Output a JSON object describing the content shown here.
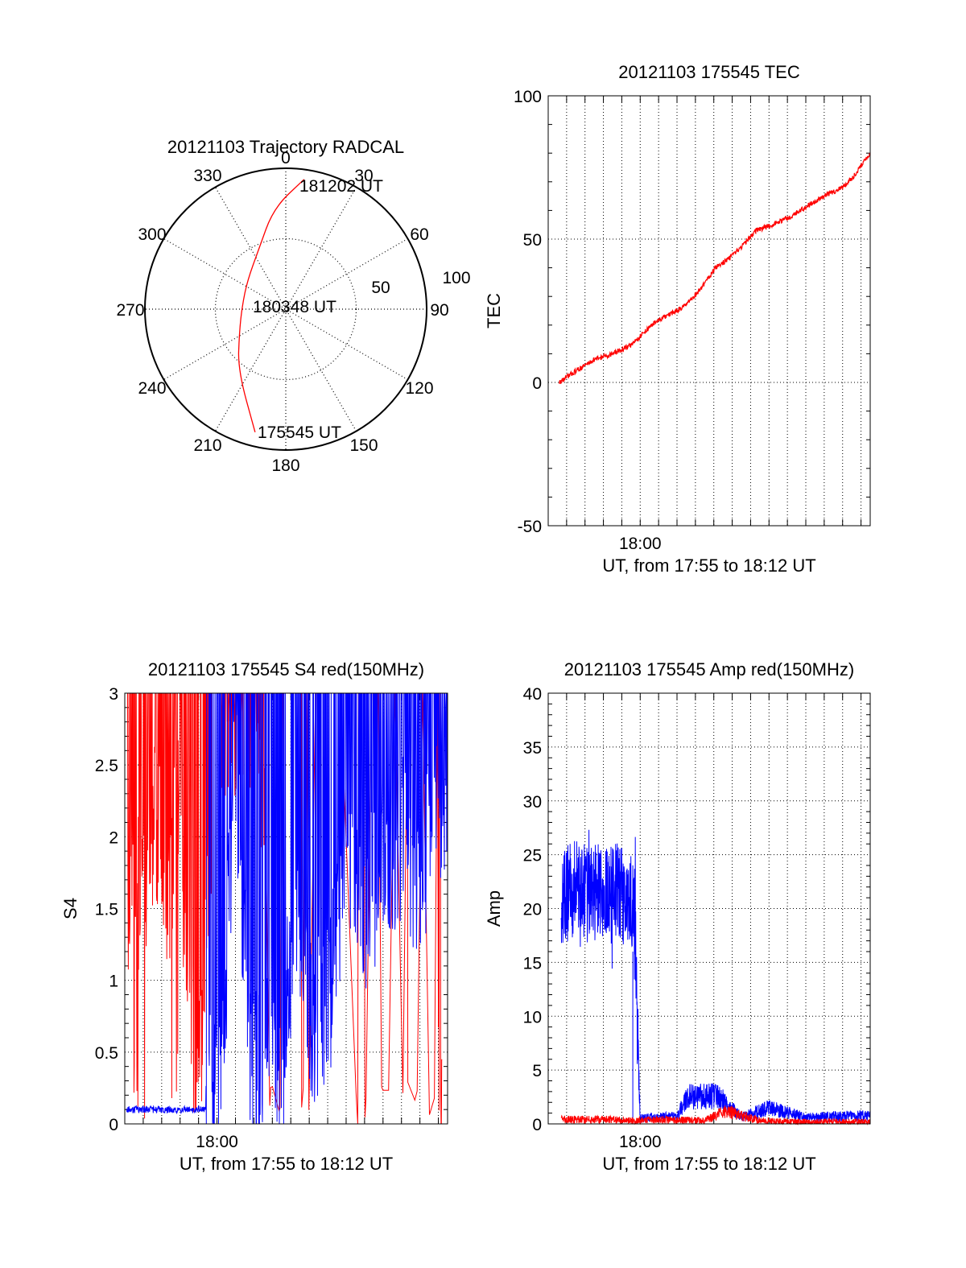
{
  "colors": {
    "red": "#ff0000",
    "blue": "#0000ff",
    "axis": "#000000",
    "grid": "#000000",
    "background": "#ffffff"
  },
  "chart_data": [
    {
      "id": "polar",
      "type": "polar-trajectory",
      "title": "20121103 Trajectory RADCAL",
      "azimuth_labels": [
        "0",
        "30",
        "60",
        "90",
        "120",
        "150",
        "180",
        "210",
        "240",
        "270",
        "300",
        "330"
      ],
      "radial_labels": [
        "50",
        "100"
      ],
      "rings": [
        50,
        100
      ],
      "rmax": 100,
      "annotations": [
        {
          "text": "181202 UT",
          "az": 8,
          "r": 93
        },
        {
          "text": "180348 UT",
          "az": 0,
          "r": 0
        },
        {
          "text": "175545 UT",
          "az": 169,
          "r": 90
        }
      ],
      "track": [
        [
          8,
          93
        ],
        [
          353,
          72
        ],
        [
          335,
          46
        ],
        [
          307,
          34
        ],
        [
          275,
          31
        ],
        [
          243,
          37
        ],
        [
          218,
          55
        ],
        [
          194,
          90
        ]
      ],
      "grid": true
    },
    {
      "id": "tec",
      "type": "line",
      "title": "20121103 175545 TEC",
      "ylabel": "TEC",
      "xlabel": "UT, from 17:55 to 18:12 UT",
      "x_tick_labels": [
        {
          "min": 360,
          "label": "18:00"
        }
      ],
      "xlim_min": [
        355,
        372.5
      ],
      "ylim": [
        -50,
        100
      ],
      "y_ticks": [
        -50,
        0,
        50,
        100
      ],
      "grid": true,
      "series": [
        {
          "color": "red",
          "x": [
            355.6,
            356.5,
            357.5,
            358.5,
            359.5,
            360.3,
            360.8,
            361.7,
            362.5,
            363.2,
            364.1,
            365,
            365.6,
            366.3,
            367.2,
            368.2,
            369.2,
            370,
            371,
            371.6,
            372.5
          ],
          "y": [
            0,
            4,
            8,
            10,
            13,
            18,
            21,
            24,
            27,
            32,
            40,
            44,
            48,
            53,
            55,
            58,
            62,
            65,
            68,
            72,
            80
          ]
        }
      ]
    },
    {
      "id": "s4",
      "type": "line",
      "title": "20121103 175545 S4 red(150MHz)",
      "ylabel": "S4",
      "xlabel": "UT, from 17:55 to 18:12 UT",
      "x_tick_labels": [
        {
          "min": 360,
          "label": "18:00"
        }
      ],
      "xlim_min": [
        355,
        372.5
      ],
      "ylim": [
        0,
        3
      ],
      "y_ticks": [
        0,
        0.5,
        1,
        1.5,
        2,
        2.5,
        3
      ],
      "grid": true,
      "series": [
        {
          "color": "red",
          "x": [
            355.1,
            355.5,
            356.1,
            356.7,
            357.3,
            357.9,
            358.3,
            359,
            359.6,
            360.2,
            361.5,
            362.9,
            363.7,
            364.5,
            365.6,
            366.2,
            366.6,
            367.1,
            367.6,
            368.2,
            372.2
          ],
          "y": [
            1.7,
            1.5,
            1.8,
            2.1,
            1.6,
            2.2,
            1.4,
            0.2,
            2,
            2.8,
            2.9,
            1.9,
            0.4,
            1.6,
            0.1,
            0.6,
            0.3,
            0.1,
            2.4,
            2.7,
            0
          ]
        },
        {
          "color": "blue",
          "x": [
            355.1,
            356.5,
            357.8,
            358.7,
            359,
            359.5,
            360.3,
            361,
            361.8,
            362.5,
            363,
            363.5,
            364.3,
            365.2,
            366,
            367,
            368,
            369,
            370,
            371,
            372.5
          ],
          "y": [
            0.1,
            0.1,
            0.1,
            0.1,
            0.12,
            0.1,
            0.6,
            2.5,
            0.5,
            0.3,
            0.8,
            0.4,
            1.6,
            0.7,
            0.8,
            1.9,
            1.5,
            1.8,
            2,
            1.7,
            2.4
          ]
        }
      ]
    },
    {
      "id": "amp",
      "type": "line",
      "title": "20121103 175545 Amp red(150MHz)",
      "ylabel": "Amp",
      "xlabel": "UT, from 17:55 to 18:12 UT",
      "x_tick_labels": [
        {
          "min": 360,
          "label": "18:00"
        }
      ],
      "xlim_min": [
        355,
        372.5
      ],
      "ylim": [
        0,
        40
      ],
      "y_ticks": [
        0,
        5,
        10,
        15,
        20,
        25,
        30,
        35,
        40
      ],
      "grid": true,
      "series": [
        {
          "color": "blue",
          "x": [
            355.7,
            356.5,
            357.5,
            358.5,
            359.2,
            359.7,
            360,
            362,
            362.6,
            364.2,
            365.5,
            367,
            369,
            370.5,
            372.5
          ],
          "y": [
            21,
            22,
            21.5,
            22,
            21,
            20,
            0.5,
            0.7,
            2.5,
            2.6,
            0.6,
            1.5,
            0.6,
            0.7,
            0.8
          ]
        },
        {
          "color": "red",
          "x": [
            355.7,
            357,
            358.5,
            359.7,
            361,
            363.5,
            364.7,
            366.5,
            368,
            372.5
          ],
          "y": [
            0.4,
            0.4,
            0.4,
            0.3,
            0.4,
            0.3,
            1.2,
            0.3,
            0.2,
            0.2
          ]
        }
      ]
    }
  ]
}
